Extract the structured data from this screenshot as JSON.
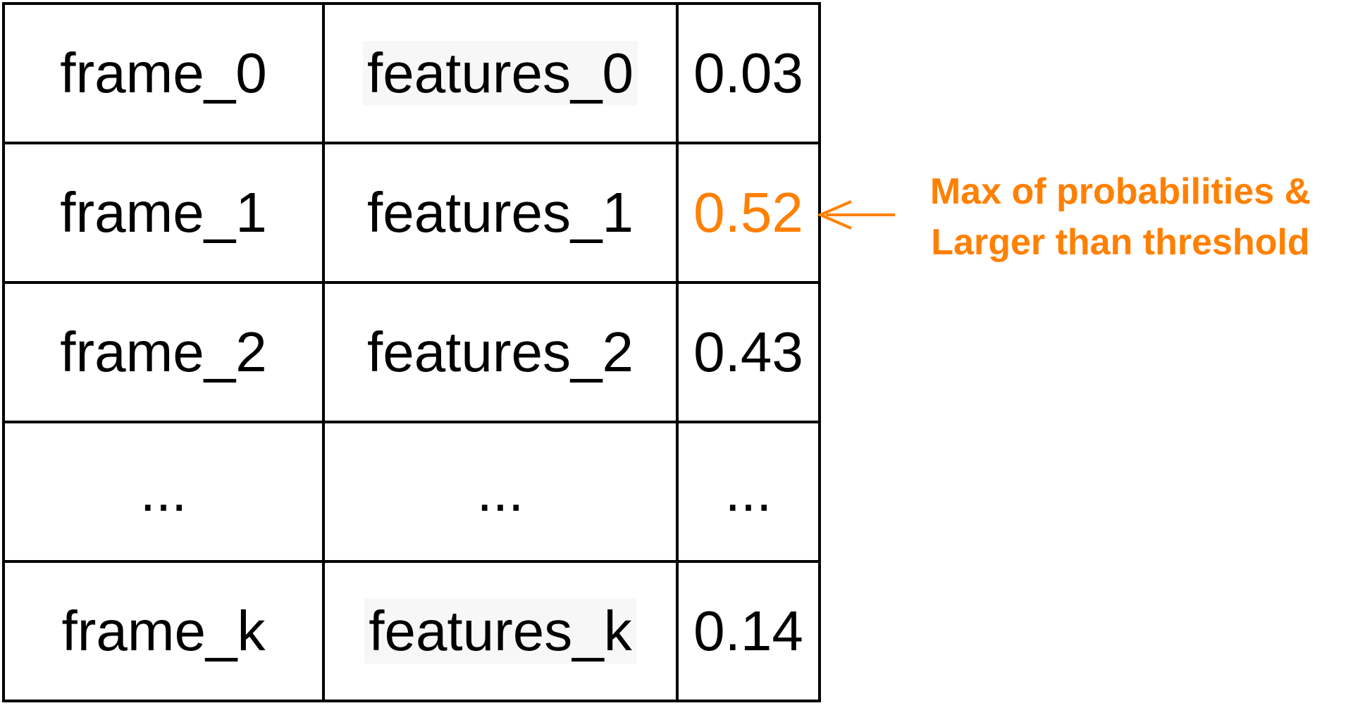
{
  "table": {
    "rows": [
      {
        "frame": "frame_0",
        "features": "features_0",
        "probability": "0.03",
        "highlighted": false
      },
      {
        "frame": "frame_1",
        "features": "features_1",
        "probability": "0.52",
        "highlighted": true
      },
      {
        "frame": "frame_2",
        "features": "features_2",
        "probability": "0.43",
        "highlighted": false
      },
      {
        "frame": "...",
        "features": "...",
        "probability": "...",
        "highlighted": false
      },
      {
        "frame": "frame_k",
        "features": "features_k",
        "probability": "0.14",
        "highlighted": false
      }
    ]
  },
  "annotation": {
    "line1": "Max of probabilities &",
    "line2": "Larger than threshold",
    "color": "#ff8000"
  },
  "colors": {
    "border": "#000000",
    "text": "#000000",
    "highlight": "#ff8000",
    "feature_shade": "#f7f7f7"
  }
}
